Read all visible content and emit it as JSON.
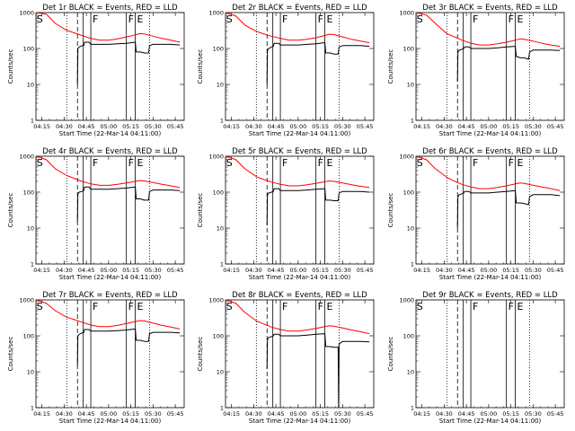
{
  "chart_data": {
    "type": "line",
    "x_tick_labels": [
      "04:15",
      "04:30",
      "04:45",
      "05:00",
      "05:15",
      "05:30",
      "05:45"
    ],
    "x_ticks_hours": [
      4.25,
      4.5,
      4.75,
      5.0,
      5.25,
      5.5,
      5.75
    ],
    "xlim_hours": [
      4.183,
      5.85
    ],
    "xlabel": "Start Time (22-Mar-14 04:11:00)",
    "ylabel": "Counts/sec",
    "y_scale": "log",
    "ylim": [
      1,
      1000
    ],
    "y_tick_labels": [
      "1",
      "10",
      "100",
      "1000"
    ],
    "y_ticks": [
      1,
      10,
      100,
      1000
    ],
    "colors": {
      "events": "#000000",
      "lld": "#ff0000"
    },
    "vlines": [
      {
        "x": 4.53,
        "style": "dotted",
        "label": ""
      },
      {
        "x": 4.65,
        "style": "dashed",
        "label": ""
      },
      {
        "x": 4.715,
        "style": "solid",
        "label": ""
      },
      {
        "x": 4.8,
        "style": "solid",
        "label": ""
      },
      {
        "x": 5.2,
        "style": "solid",
        "label": ""
      },
      {
        "x": 5.3,
        "style": "solid",
        "label": ""
      },
      {
        "x": 5.46,
        "style": "dotted",
        "label": ""
      }
    ],
    "markers": [
      {
        "x": 4.19,
        "text": "S"
      },
      {
        "x": 4.82,
        "text": "F"
      },
      {
        "x": 5.22,
        "text": "F"
      },
      {
        "x": 5.32,
        "text": "E"
      }
    ],
    "panels": [
      {
        "title": "Det 1r BLACK = Events, RED = LLD",
        "series": [
          {
            "key": "lld",
            "x": [
              4.19,
              4.3,
              4.4,
              4.53,
              4.6,
              4.7,
              4.8,
              4.9,
              5.0,
              5.1,
              5.2,
              5.3,
              5.35,
              5.4,
              5.5,
              5.6,
              5.7,
              5.8
            ],
            "y": [
              1000,
              900,
              500,
              320,
              280,
              230,
              190,
              170,
              170,
              185,
              210,
              240,
              260,
              255,
              220,
              190,
              170,
              150
            ]
          },
          {
            "key": "events",
            "x": [
              4.65,
              4.655,
              4.67,
              4.7,
              4.72,
              4.73,
              4.78,
              4.8,
              4.9,
              5.0,
              5.1,
              5.2,
              5.3,
              5.31,
              5.36,
              5.4,
              5.45,
              5.46,
              5.5,
              5.6,
              5.7,
              5.8
            ],
            "y": [
              10,
              100,
              110,
              120,
              120,
              150,
              150,
              130,
              130,
              130,
              135,
              140,
              150,
              80,
              80,
              75,
              75,
              120,
              130,
              130,
              130,
              125
            ]
          }
        ]
      },
      {
        "title": "Det 2r BLACK = Events, RED = LLD",
        "series": [
          {
            "key": "lld",
            "x": [
              4.19,
              4.3,
              4.4,
              4.53,
              4.6,
              4.7,
              4.8,
              4.9,
              5.0,
              5.1,
              5.2,
              5.3,
              5.35,
              5.4,
              5.5,
              5.6,
              5.7,
              5.8
            ],
            "y": [
              1000,
              800,
              450,
              300,
              260,
              220,
              190,
              170,
              170,
              180,
              200,
              230,
              250,
              245,
              210,
              180,
              160,
              145
            ]
          },
          {
            "key": "events",
            "x": [
              4.65,
              4.655,
              4.67,
              4.7,
              4.72,
              4.73,
              4.78,
              4.8,
              4.9,
              5.0,
              5.1,
              5.2,
              5.3,
              5.31,
              5.36,
              5.4,
              5.45,
              5.46,
              5.5,
              5.6,
              5.7,
              5.8
            ],
            "y": [
              10,
              90,
              100,
              110,
              115,
              140,
              140,
              125,
              125,
              125,
              130,
              135,
              145,
              75,
              75,
              70,
              70,
              110,
              120,
              120,
              120,
              115
            ]
          }
        ]
      },
      {
        "title": "Det 3r BLACK = Events, RED = LLD",
        "series": [
          {
            "key": "lld",
            "x": [
              4.19,
              4.3,
              4.4,
              4.53,
              4.6,
              4.7,
              4.8,
              4.9,
              5.0,
              5.1,
              5.2,
              5.3,
              5.35,
              5.4,
              5.5,
              5.6,
              5.7,
              5.8
            ],
            "y": [
              1000,
              850,
              500,
              260,
              220,
              170,
              140,
              125,
              125,
              135,
              150,
              170,
              185,
              180,
              160,
              140,
              125,
              115
            ]
          },
          {
            "key": "events",
            "x": [
              4.65,
              4.655,
              4.67,
              4.7,
              4.72,
              4.73,
              4.78,
              4.8,
              4.9,
              5.0,
              5.1,
              5.2,
              5.3,
              5.31,
              5.36,
              5.4,
              5.45,
              5.46,
              5.5,
              5.6,
              5.7,
              5.8
            ],
            "y": [
              12,
              80,
              90,
              95,
              100,
              110,
              110,
              100,
              100,
              100,
              105,
              110,
              115,
              60,
              55,
              55,
              50,
              80,
              90,
              90,
              90,
              88
            ]
          }
        ]
      },
      {
        "title": "Det 4r BLACK = Events, RED = LLD",
        "series": [
          {
            "key": "lld",
            "x": [
              4.19,
              4.3,
              4.4,
              4.53,
              4.6,
              4.7,
              4.8,
              4.9,
              5.0,
              5.1,
              5.2,
              5.3,
              5.35,
              5.4,
              5.5,
              5.6,
              5.7,
              5.8
            ],
            "y": [
              1000,
              800,
              450,
              290,
              250,
              200,
              170,
              155,
              155,
              165,
              180,
              200,
              210,
              205,
              185,
              165,
              150,
              135
            ]
          },
          {
            "key": "events",
            "x": [
              4.65,
              4.655,
              4.67,
              4.7,
              4.72,
              4.73,
              4.78,
              4.8,
              4.9,
              5.0,
              5.1,
              5.2,
              5.3,
              5.31,
              5.36,
              5.4,
              5.45,
              5.46,
              5.5,
              5.6,
              5.7,
              5.8
            ],
            "y": [
              15,
              90,
              100,
              105,
              110,
              140,
              140,
              120,
              120,
              120,
              125,
              130,
              140,
              65,
              65,
              60,
              60,
              105,
              115,
              115,
              115,
              110
            ]
          }
        ]
      },
      {
        "title": "Det 5r BLACK = Events, RED = LLD",
        "series": [
          {
            "key": "lld",
            "x": [
              4.19,
              4.3,
              4.4,
              4.53,
              4.6,
              4.7,
              4.8,
              4.9,
              5.0,
              5.1,
              5.2,
              5.3,
              5.35,
              5.4,
              5.5,
              5.6,
              5.7,
              5.8
            ],
            "y": [
              1000,
              800,
              450,
              270,
              230,
              190,
              165,
              150,
              150,
              160,
              175,
              195,
              205,
              200,
              180,
              160,
              145,
              135
            ]
          },
          {
            "key": "events",
            "x": [
              4.65,
              4.655,
              4.67,
              4.7,
              4.72,
              4.73,
              4.78,
              4.8,
              4.9,
              5.0,
              5.1,
              5.2,
              5.3,
              5.31,
              5.36,
              5.4,
              5.45,
              5.46,
              5.5,
              5.6,
              5.7,
              5.8
            ],
            "y": [
              12,
              85,
              95,
              100,
              105,
              125,
              125,
              110,
              110,
              110,
              115,
              120,
              125,
              60,
              60,
              58,
              58,
              95,
              105,
              105,
              105,
              100
            ]
          }
        ]
      },
      {
        "title": "Det 6r BLACK = Events, RED = LLD",
        "series": [
          {
            "key": "lld",
            "x": [
              4.19,
              4.3,
              4.4,
              4.53,
              4.6,
              4.7,
              4.8,
              4.9,
              5.0,
              5.1,
              5.2,
              5.3,
              5.35,
              5.4,
              5.5,
              5.6,
              5.7,
              5.8
            ],
            "y": [
              1000,
              800,
              450,
              260,
              210,
              165,
              140,
              125,
              125,
              135,
              150,
              170,
              180,
              175,
              155,
              140,
              125,
              110
            ]
          },
          {
            "key": "events",
            "x": [
              4.65,
              4.655,
              4.67,
              4.7,
              4.72,
              4.73,
              4.78,
              4.8,
              4.9,
              5.0,
              5.1,
              5.2,
              5.3,
              5.31,
              5.36,
              5.4,
              5.45,
              5.46,
              5.5,
              5.6,
              5.7,
              5.8
            ],
            "y": [
              10,
              75,
              85,
              90,
              95,
              105,
              105,
              95,
              95,
              95,
              100,
              105,
              110,
              50,
              50,
              48,
              45,
              75,
              85,
              85,
              85,
              80
            ]
          }
        ]
      },
      {
        "title": "Det 7r BLACK = Events, RED = LLD",
        "series": [
          {
            "key": "lld",
            "x": [
              4.19,
              4.3,
              4.4,
              4.53,
              4.6,
              4.7,
              4.8,
              4.9,
              5.0,
              5.1,
              5.2,
              5.3,
              5.35,
              5.4,
              5.5,
              5.6,
              5.7,
              5.8
            ],
            "y": [
              1000,
              800,
              500,
              330,
              290,
              240,
              200,
              180,
              180,
              195,
              220,
              250,
              265,
              260,
              225,
              195,
              175,
              155
            ]
          },
          {
            "key": "events",
            "x": [
              4.65,
              4.655,
              4.67,
              4.7,
              4.72,
              4.73,
              4.78,
              4.8,
              4.9,
              5.0,
              5.1,
              5.2,
              5.3,
              5.31,
              5.36,
              5.4,
              5.45,
              5.46,
              5.5,
              5.6,
              5.7,
              5.8
            ],
            "y": [
              15,
              100,
              110,
              120,
              125,
              150,
              150,
              135,
              135,
              135,
              140,
              145,
              155,
              75,
              75,
              70,
              70,
              115,
              125,
              125,
              125,
              120
            ]
          }
        ]
      },
      {
        "title": "Det 8r BLACK = Events, RED = LLD",
        "series": [
          {
            "key": "lld",
            "x": [
              4.19,
              4.3,
              4.4,
              4.53,
              4.6,
              4.7,
              4.8,
              4.9,
              5.0,
              5.1,
              5.2,
              5.3,
              5.35,
              5.4,
              5.5,
              5.6,
              5.7,
              5.8
            ],
            "y": [
              1000,
              800,
              450,
              260,
              220,
              175,
              150,
              135,
              135,
              145,
              160,
              180,
              190,
              185,
              165,
              145,
              130,
              115
            ]
          },
          {
            "key": "events",
            "x": [
              4.65,
              4.655,
              4.67,
              4.7,
              4.72,
              4.73,
              4.78,
              4.8,
              4.9,
              5.0,
              5.1,
              5.2,
              5.3,
              5.31,
              5.36,
              5.4,
              5.45,
              5.455,
              5.46,
              5.5,
              5.6,
              5.7,
              5.8
            ],
            "y": [
              12,
              80,
              90,
              95,
              100,
              110,
              110,
              100,
              100,
              100,
              105,
              110,
              115,
              50,
              50,
              48,
              48,
              1,
              60,
              70,
              70,
              70,
              68
            ]
          }
        ]
      },
      {
        "title": "Det 9r BLACK = Events, RED = LLD",
        "series": []
      }
    ]
  }
}
